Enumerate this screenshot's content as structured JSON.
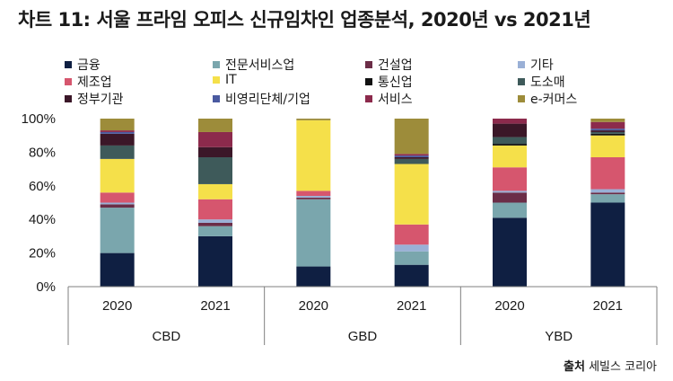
{
  "title": "차트 11: 서울 프라임 오피스 신규임차인 업종분석, 2020년 vs 2021년",
  "source": {
    "label": "출처",
    "text": "세빌스 코리아"
  },
  "chart_data": {
    "type": "bar",
    "stacked": true,
    "title": "차트 11: 서울 프라임 오피스 신규임차인 업종분석, 2020년 vs 2021년",
    "ylim": [
      0,
      100
    ],
    "yticks": [
      "0%",
      "20%",
      "40%",
      "60%",
      "80%",
      "100%"
    ],
    "groups": [
      "CBD",
      "GBD",
      "YBD"
    ],
    "categories": [
      "2020",
      "2021",
      "2020",
      "2021",
      "2020",
      "2021"
    ],
    "series": [
      {
        "name": "금융",
        "color": "#0f1f42",
        "values": [
          20,
          30,
          12,
          13,
          41,
          50
        ]
      },
      {
        "name": "전문서비스업",
        "color": "#7aa6ad",
        "values": [
          27,
          6,
          40,
          8,
          9,
          5
        ]
      },
      {
        "name": "건설업",
        "color": "#6b2d47",
        "values": [
          2,
          2,
          1,
          0,
          6,
          1
        ]
      },
      {
        "name": "기타",
        "color": "#9ab0d6",
        "values": [
          1,
          2,
          1,
          4,
          1,
          2
        ]
      },
      {
        "name": "제조업",
        "color": "#d6566e",
        "values": [
          6,
          12,
          3,
          12,
          14,
          19
        ]
      },
      {
        "name": "IT",
        "color": "#f5e04a",
        "values": [
          20,
          9,
          42,
          36,
          13,
          13
        ]
      },
      {
        "name": "통신업",
        "color": "#121212",
        "values": [
          0,
          0,
          0,
          0,
          1,
          1
        ]
      },
      {
        "name": "도소매",
        "color": "#3e5a5a",
        "values": [
          8,
          16,
          0,
          3,
          4,
          1
        ]
      },
      {
        "name": "정부기관",
        "color": "#3b1728",
        "values": [
          7,
          6,
          0,
          1,
          8,
          1
        ]
      },
      {
        "name": "비영리단체/기업",
        "color": "#4a5aa0",
        "values": [
          1,
          0,
          0,
          1,
          0,
          1
        ]
      },
      {
        "name": "서비스",
        "color": "#8c2a4c",
        "values": [
          1,
          9,
          0,
          1,
          3,
          4
        ]
      },
      {
        "name": "e-커머스",
        "color": "#9d8c3a",
        "values": [
          7,
          8,
          1,
          21,
          0,
          2
        ]
      }
    ]
  }
}
